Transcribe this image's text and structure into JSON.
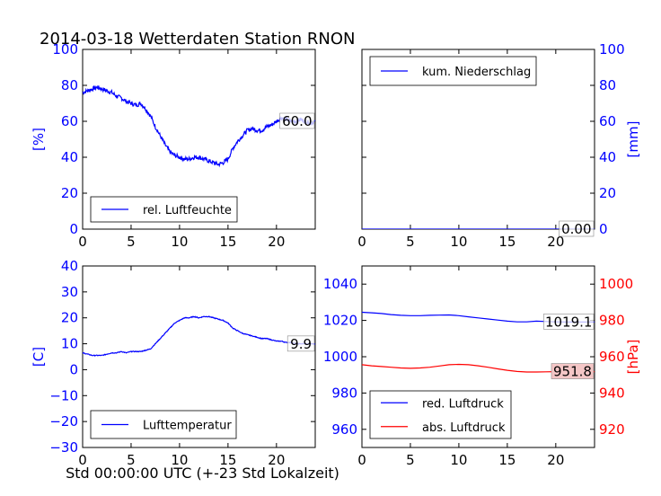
{
  "title": "2014-03-18 Wetterdaten Station RNON",
  "colors": {
    "blue": "#0000ff",
    "red": "#ff0000",
    "box_red": "#f4c6c6"
  },
  "chart_data": [
    {
      "id": "humidity",
      "type": "line",
      "ylabel": "[%]",
      "ylabel_color": "blue",
      "axis_side": "left",
      "xlim": [
        0,
        24
      ],
      "ylim": [
        0,
        100
      ],
      "xticks": [
        0,
        5,
        10,
        15,
        20
      ],
      "yticks": [
        0,
        20,
        40,
        60,
        80,
        100
      ],
      "legend_position": "bottom-left",
      "series": [
        {
          "name": "rel. Luftfeuchte",
          "color": "blue",
          "noise": 1.2,
          "x": [
            0,
            0.5,
            1,
            1.5,
            2,
            2.5,
            3,
            3.5,
            4,
            4.5,
            5,
            5.5,
            6,
            6.5,
            7,
            7.5,
            8,
            8.5,
            9,
            9.5,
            10,
            10.5,
            11,
            11.5,
            12,
            12.5,
            13,
            13.5,
            14,
            14.5,
            15,
            15.5,
            16,
            16.5,
            17,
            17.5,
            18,
            18.5,
            19,
            19.5,
            20,
            20.5,
            21,
            21.5,
            22,
            22.5,
            23,
            23.5,
            24
          ],
          "y": [
            76,
            77,
            78,
            79,
            78,
            77,
            76,
            74,
            73,
            71,
            70,
            69,
            70,
            67,
            63,
            57,
            52,
            47,
            43,
            41,
            40,
            39,
            39,
            40,
            40,
            39,
            38,
            37,
            36,
            37,
            39,
            45,
            49,
            52,
            55,
            56,
            55,
            55,
            57,
            58,
            60,
            62,
            61,
            60,
            60,
            61,
            60,
            59,
            60
          ]
        }
      ],
      "last_value_label": "60.0",
      "last_value_y": 60
    },
    {
      "id": "precipitation",
      "type": "line",
      "ylabel": "[mm]",
      "ylabel_color": "blue",
      "axis_side": "right",
      "xlim": [
        0,
        24
      ],
      "ylim": [
        0,
        100
      ],
      "xticks": [
        0,
        5,
        10,
        15,
        20
      ],
      "yticks": [
        0,
        20,
        40,
        60,
        80,
        100
      ],
      "legend_position": "top-left",
      "series": [
        {
          "name": "kum. Niederschlag",
          "color": "blue",
          "noise": 0,
          "x": [
            0,
            24
          ],
          "y": [
            0,
            0
          ]
        }
      ],
      "last_value_label": "0.00",
      "last_value_y": 0
    },
    {
      "id": "temperature",
      "type": "line",
      "ylabel": "[C]",
      "ylabel_color": "blue",
      "axis_side": "left",
      "xlabel": "Std 00:00:00 UTC (+-23 Std Lokalzeit)",
      "xlim": [
        0,
        24
      ],
      "ylim": [
        -30,
        40
      ],
      "xticks": [
        0,
        5,
        10,
        15,
        20
      ],
      "yticks": [
        -30,
        -20,
        -10,
        0,
        10,
        20,
        30,
        40
      ],
      "legend_position": "bottom-left",
      "series": [
        {
          "name": "Lufttemperatur",
          "color": "blue",
          "noise": 0.15,
          "x": [
            0,
            0.5,
            1,
            1.5,
            2,
            2.5,
            3,
            3.5,
            4,
            4.5,
            5,
            5.5,
            6,
            6.5,
            7,
            7.5,
            8,
            8.5,
            9,
            9.5,
            10,
            10.5,
            11,
            11.5,
            12,
            12.5,
            13,
            13.5,
            14,
            14.5,
            15,
            15.5,
            16,
            16.5,
            17,
            17.5,
            18,
            18.5,
            19,
            19.5,
            20,
            20.5,
            21,
            21.5,
            22,
            22.5,
            23,
            23.5,
            24
          ],
          "y": [
            6.5,
            6,
            5.5,
            5.5,
            5.5,
            6,
            6.5,
            6.5,
            7,
            6.5,
            7,
            7,
            7,
            7.5,
            8,
            10,
            12,
            14,
            16,
            18,
            19,
            20,
            20,
            20.5,
            20,
            20.5,
            20.5,
            20,
            19.5,
            19,
            18,
            16,
            15,
            14,
            13.5,
            13,
            12.5,
            12,
            12,
            11.5,
            11,
            11,
            10.5,
            10.5,
            10,
            10,
            10,
            10,
            9.9
          ]
        }
      ],
      "last_value_label": "9.9",
      "last_value_y": 9.9
    },
    {
      "id": "pressure",
      "type": "line",
      "ylabel": "[hPa]",
      "ylabel_color": "red",
      "axis_side": "both",
      "xlim": [
        0,
        24
      ],
      "ylim": [
        950,
        1050
      ],
      "yticks": [
        960,
        980,
        1000,
        1020,
        1040
      ],
      "right_ylim": [
        910,
        1010
      ],
      "right_yticks": [
        920,
        940,
        960,
        980,
        1000
      ],
      "xticks": [
        0,
        5,
        10,
        15,
        20
      ],
      "legend_position": "bottom-left",
      "series": [
        {
          "name": "red. Luftdruck",
          "color": "blue",
          "axis": "left",
          "noise": 0,
          "x": [
            0,
            1,
            2,
            3,
            4,
            5,
            6,
            7,
            8,
            9,
            10,
            11,
            12,
            13,
            14,
            15,
            16,
            17,
            18,
            19,
            20,
            21,
            22,
            23,
            24
          ],
          "y": [
            1024.5,
            1024.2,
            1023.8,
            1023.2,
            1022.8,
            1022.6,
            1022.6,
            1022.8,
            1022.9,
            1023,
            1022.6,
            1022.0,
            1021.4,
            1020.8,
            1020.2,
            1019.6,
            1019.2,
            1019.2,
            1019.6,
            1019.4,
            1019.2,
            1019.1,
            1019.1,
            1019.1,
            1019.1
          ]
        },
        {
          "name": "abs. Luftdruck",
          "color": "red",
          "axis": "right",
          "noise": 0,
          "x": [
            0,
            1,
            2,
            3,
            4,
            5,
            6,
            7,
            8,
            9,
            10,
            11,
            12,
            13,
            14,
            15,
            16,
            17,
            18,
            19,
            20,
            21,
            22,
            23,
            24
          ],
          "y": [
            955.6,
            955.0,
            954.6,
            954.2,
            953.8,
            953.6,
            953.8,
            954.2,
            954.9,
            955.6,
            955.8,
            955.6,
            955.0,
            954.2,
            953.3,
            952.5,
            951.9,
            951.6,
            951.6,
            951.7,
            951.8,
            951.8,
            951.8,
            951.8,
            951.8
          ]
        }
      ],
      "last_value_label": "1019.1",
      "last_value_y": 1019.1,
      "last_value_label_2": "951.8",
      "last_value_y_2": 951.8
    }
  ]
}
